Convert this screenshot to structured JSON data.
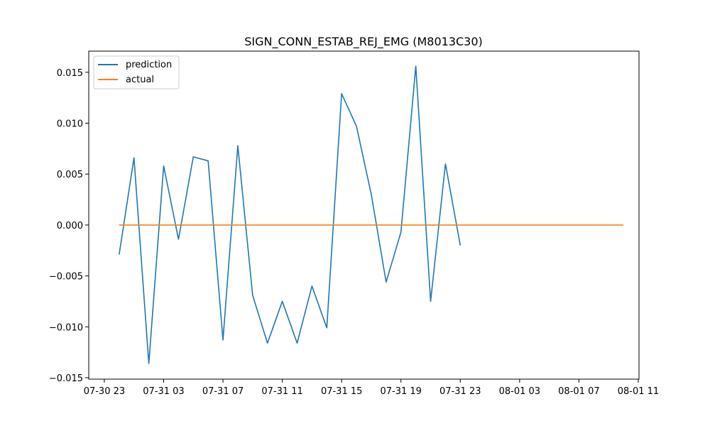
{
  "chart_data": {
    "type": "line",
    "title": "SIGN_CONN_ESTAB_REJ_EMG (M8013C30)",
    "xlabel": "",
    "ylabel": "",
    "x_axis": "time (hours since 07-30 23:00)",
    "xlim": [
      -1.05,
      36.05
    ],
    "ylim": [
      -0.01514,
      0.01708
    ],
    "xticks": [
      {
        "hour": 0,
        "label": "07-30 23"
      },
      {
        "hour": 4,
        "label": "07-31 03"
      },
      {
        "hour": 8,
        "label": "07-31 07"
      },
      {
        "hour": 12,
        "label": "07-31 11"
      },
      {
        "hour": 16,
        "label": "07-31 15"
      },
      {
        "hour": 20,
        "label": "07-31 19"
      },
      {
        "hour": 24,
        "label": "07-31 23"
      },
      {
        "hour": 28,
        "label": "08-01 03"
      },
      {
        "hour": 32,
        "label": "08-01 07"
      },
      {
        "hour": 36,
        "label": "08-01 11"
      }
    ],
    "yticks": [
      {
        "value": 0.015,
        "label": "0.015"
      },
      {
        "value": 0.01,
        "label": "0.010"
      },
      {
        "value": 0.005,
        "label": "0.005"
      },
      {
        "value": 0.0,
        "label": "0.000"
      },
      {
        "value": -0.005,
        "label": "−0.005"
      },
      {
        "value": -0.01,
        "label": "−0.010"
      },
      {
        "value": -0.015,
        "label": "−0.015"
      }
    ],
    "legend_position": "top-left",
    "series": [
      {
        "name": "prediction",
        "color": "#1f77b4",
        "x": [
          1,
          2,
          3,
          4,
          5,
          6,
          7,
          8,
          9,
          10,
          11,
          12,
          13,
          14,
          15,
          16,
          17,
          18,
          19,
          20,
          21,
          22,
          23,
          24
        ],
        "y": [
          -0.0029,
          0.0066,
          -0.0136,
          0.0058,
          -0.0014,
          0.0067,
          0.0063,
          -0.0113,
          0.0078,
          -0.0069,
          -0.0116,
          -0.0075,
          -0.0116,
          -0.006,
          -0.0101,
          0.0129,
          0.0097,
          0.003,
          -0.0056,
          -0.0007,
          0.0156,
          -0.0075,
          0.006,
          -0.002
        ]
      },
      {
        "name": "actual",
        "color": "#ff7f0e",
        "x": [
          1,
          2,
          3,
          4,
          5,
          6,
          7,
          8,
          9,
          10,
          11,
          12,
          13,
          14,
          15,
          16,
          17,
          18,
          19,
          20,
          21,
          22,
          23,
          24,
          25,
          26,
          27,
          28,
          29,
          30,
          31,
          32,
          33,
          34,
          35
        ],
        "y": [
          0,
          0,
          0,
          0,
          0,
          0,
          0,
          0,
          0,
          0,
          0,
          0,
          0,
          0,
          0,
          0,
          0,
          0,
          0,
          0,
          0,
          0,
          0,
          0,
          0,
          0,
          0,
          0,
          0,
          0,
          0,
          0,
          0,
          0,
          0
        ]
      }
    ]
  }
}
